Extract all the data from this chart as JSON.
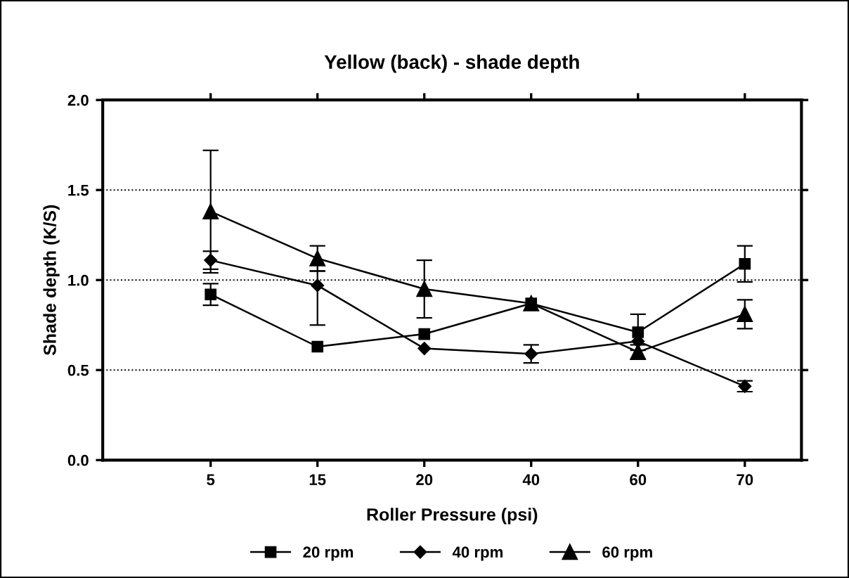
{
  "chart_data": {
    "type": "line",
    "title": "Yellow (back) - shade depth",
    "xlabel": "Roller Pressure (psi)",
    "ylabel": "Shade depth (K/S)",
    "categories": [
      "5",
      "15",
      "20",
      "40",
      "60",
      "70"
    ],
    "series": [
      {
        "name": "20 rpm",
        "color": "#000000",
        "marker": "square",
        "values": [
          0.92,
          0.63,
          0.7,
          0.87,
          0.71,
          1.09
        ],
        "errors": [
          0.06,
          null,
          null,
          null,
          0.1,
          0.1
        ]
      },
      {
        "name": "40 rpm",
        "color": "#000000",
        "marker": "diamond",
        "values": [
          1.11,
          0.97,
          0.62,
          0.59,
          0.66,
          0.41
        ],
        "errors": [
          0.05,
          [
            0.75,
            1.05
          ],
          null,
          0.05,
          null,
          0.03
        ]
      },
      {
        "name": "60 rpm",
        "color": "#000000",
        "marker": "triangle",
        "values": [
          1.38,
          1.12,
          0.95,
          0.87,
          0.6,
          0.81
        ],
        "errors": [
          0.34,
          0.07,
          0.16,
          null,
          0.04,
          0.08
        ]
      }
    ],
    "ylim": [
      0,
      2.0
    ],
    "yticks": [
      {
        "value": 0,
        "label": "0.0"
      },
      {
        "value": 0.5,
        "label": "0.5"
      },
      {
        "value": 1.0,
        "label": "1.0"
      },
      {
        "value": 1.5,
        "label": "1.5"
      },
      {
        "value": 2.0,
        "label": "2.0"
      }
    ],
    "grid": "y",
    "legend": "bottom",
    "line_style": "solid"
  }
}
